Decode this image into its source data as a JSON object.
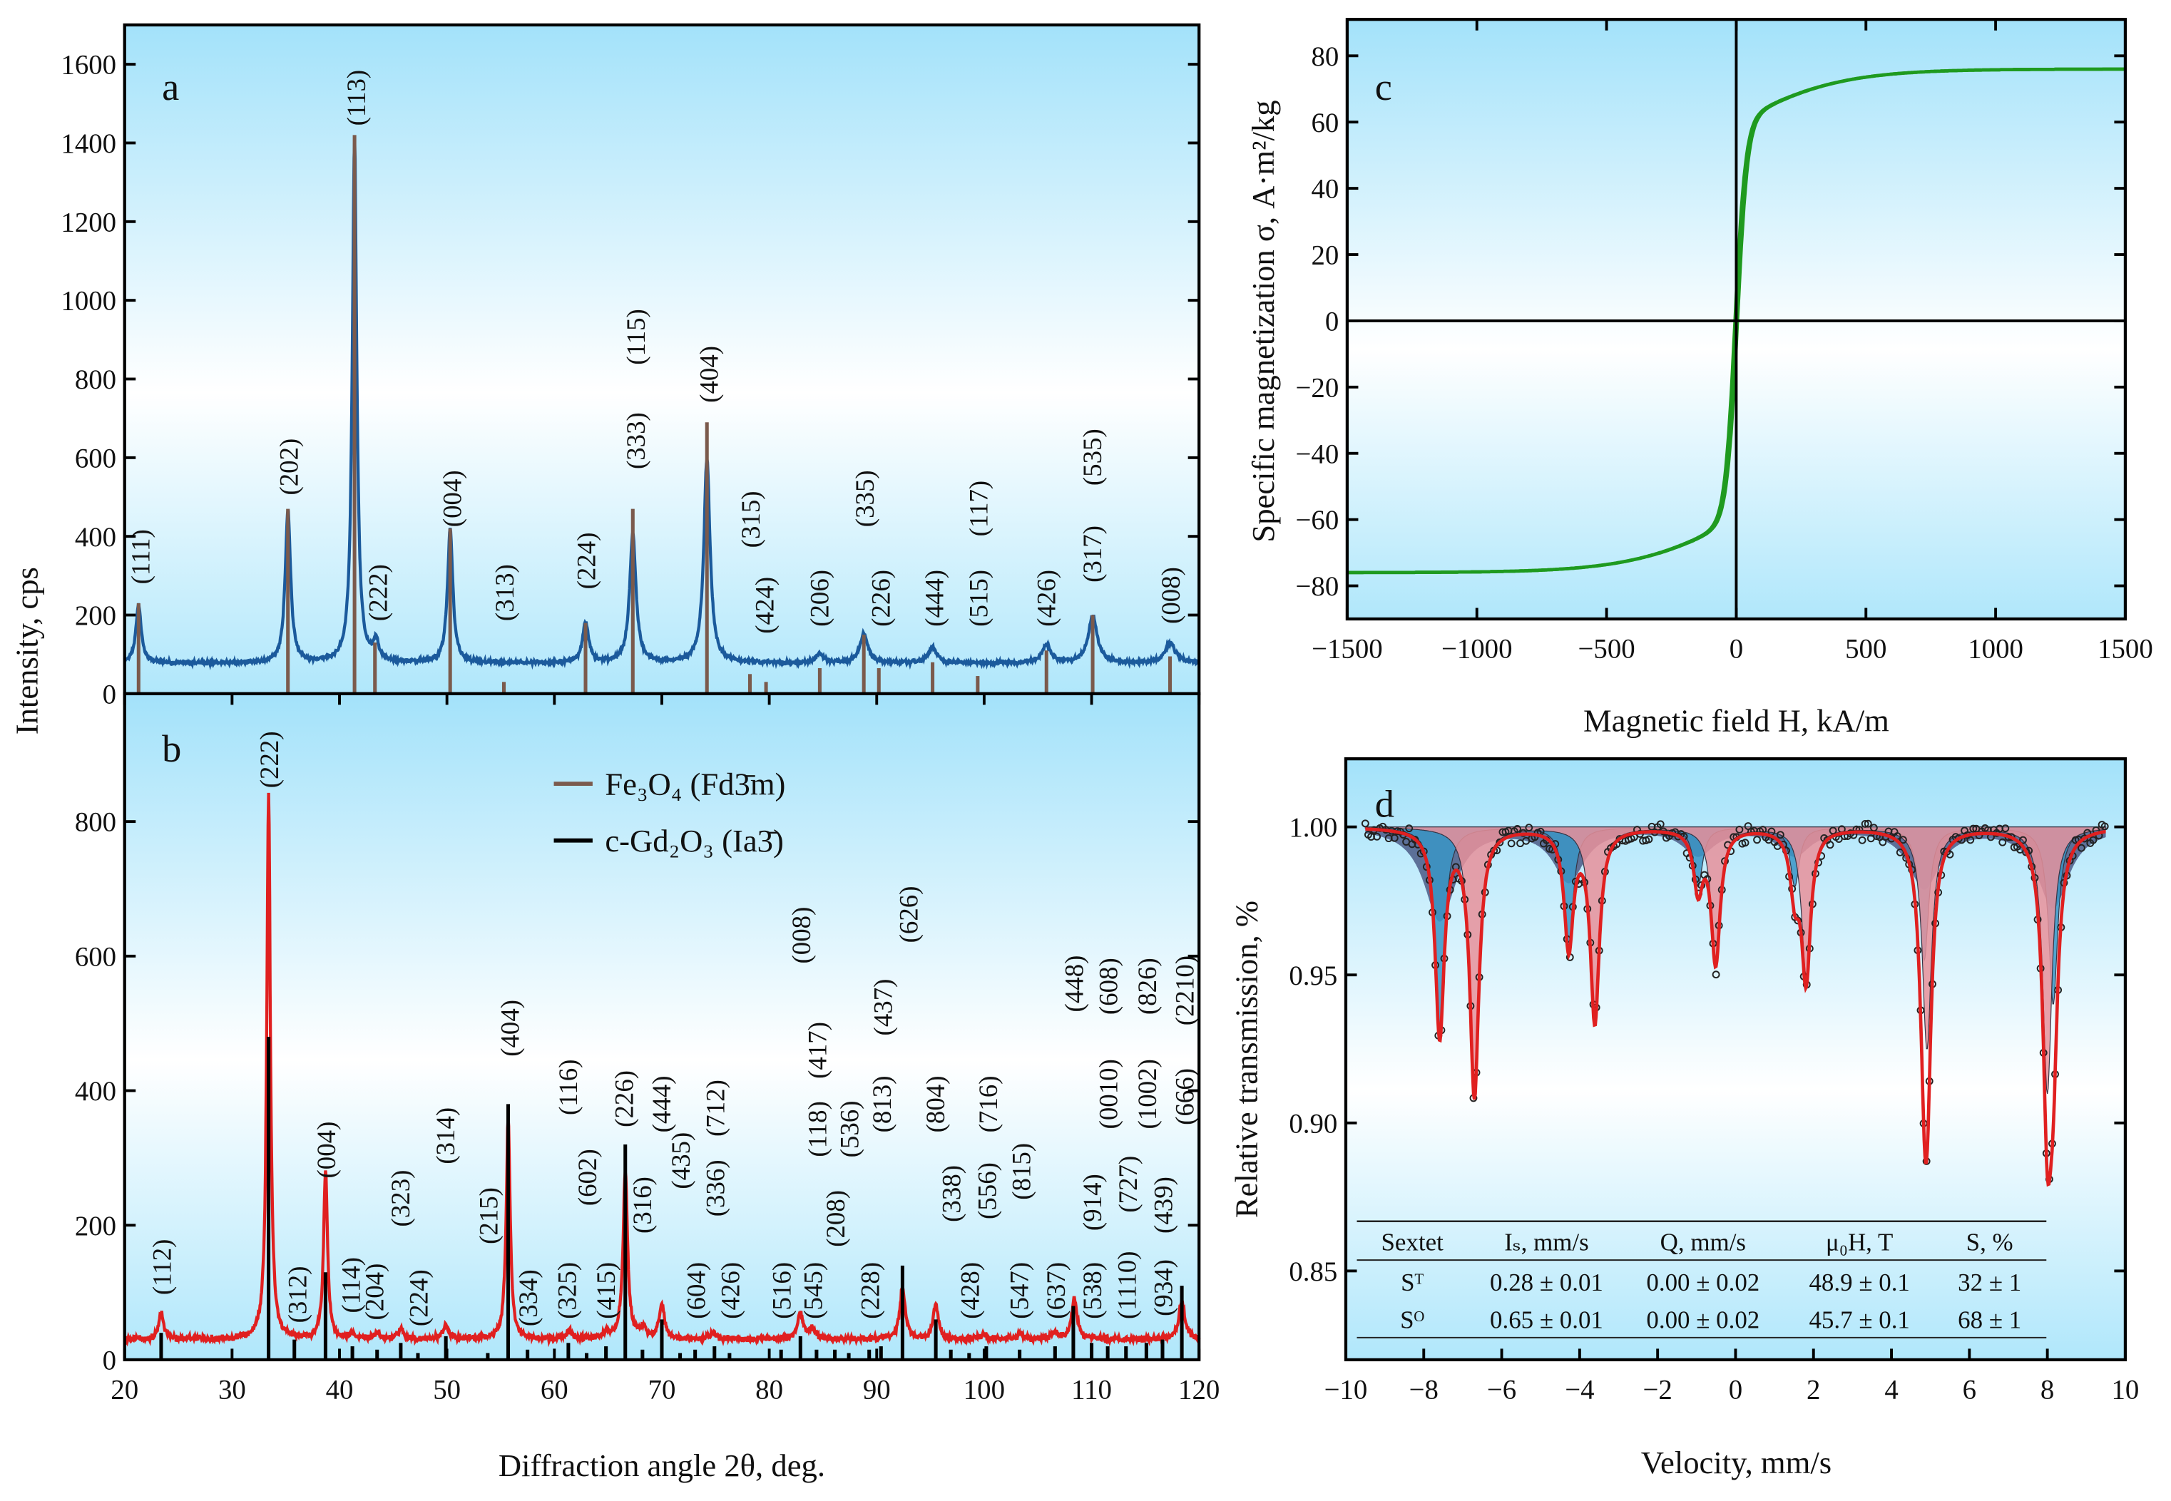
{
  "chart_data": [
    {
      "panel": "a",
      "type": "line",
      "xlabel": "Diffraction angle  2θ, deg.",
      "ylabel": "Intensity, cps",
      "xlim": [
        20,
        120
      ],
      "ylim": [
        0,
        1700
      ],
      "yticks": [
        0,
        200,
        400,
        600,
        800,
        1000,
        1200,
        1400,
        1600
      ],
      "series_color": "#1b5a9c",
      "stick_color": "#7b5a4c",
      "baseline": 75,
      "peaks": [
        [
          21.3,
          150,
          0.3
        ],
        [
          35.2,
          390,
          0.3
        ],
        [
          41.4,
          1330,
          0.25
        ],
        [
          43.4,
          50,
          0.3
        ],
        [
          50.3,
          340,
          0.3
        ],
        [
          62.9,
          100,
          0.35
        ],
        [
          67.3,
          330,
          0.35
        ],
        [
          74.2,
          520,
          0.35
        ],
        [
          84.7,
          25,
          0.4
        ],
        [
          88.8,
          75,
          0.45
        ],
        [
          95.2,
          40,
          0.5
        ],
        [
          105.8,
          45,
          0.5
        ],
        [
          110.1,
          120,
          0.5
        ],
        [
          117.3,
          50,
          0.6
        ]
      ],
      "sticks": [
        [
          21.3,
          230
        ],
        [
          35.2,
          470
        ],
        [
          41.4,
          1420
        ],
        [
          43.3,
          130
        ],
        [
          50.3,
          420
        ],
        [
          55.3,
          30
        ],
        [
          62.9,
          180
        ],
        [
          67.3,
          470
        ],
        [
          74.2,
          690
        ],
        [
          78.2,
          50
        ],
        [
          79.7,
          30
        ],
        [
          84.7,
          65
        ],
        [
          88.8,
          150
        ],
        [
          90.2,
          65
        ],
        [
          95.2,
          80
        ],
        [
          99.4,
          45
        ],
        [
          105.8,
          110
        ],
        [
          110.1,
          200
        ],
        [
          117.3,
          95
        ]
      ],
      "annotations": [
        [
          "(111)",
          21.4,
          348
        ],
        [
          "(202)",
          35.2,
          577
        ],
        [
          "(113)",
          41.5,
          1515
        ],
        [
          "(222)",
          43.5,
          257
        ],
        [
          "(004)",
          50.4,
          496
        ],
        [
          "(313)",
          55.3,
          257
        ],
        [
          "(224)",
          62.9,
          338
        ],
        [
          "(333)",
          67.5,
          643
        ],
        [
          "(115)",
          67.5,
          907
        ],
        [
          "(404)",
          74.3,
          812
        ],
        [
          "(315)",
          78.2,
          443
        ],
        [
          "(424)",
          79.5,
          225
        ],
        [
          "(206)",
          84.6,
          243
        ],
        [
          "(335)",
          88.8,
          496
        ],
        [
          "(226)",
          90.3,
          243
        ],
        [
          "(444)",
          95.3,
          243
        ],
        [
          "(515)",
          99.4,
          243
        ],
        [
          "(117)",
          99.4,
          471
        ],
        [
          "(426)",
          105.7,
          243
        ],
        [
          "(535)",
          110.0,
          601
        ],
        [
          "(317)",
          110.0,
          355
        ],
        [
          "(008)",
          117.3,
          250
        ]
      ]
    },
    {
      "panel": "b",
      "type": "line",
      "xlabel": "Diffraction angle  2θ, deg.",
      "ylabel": "Intensity, cps",
      "xlim": [
        20,
        120
      ],
      "ylim": [
        0,
        990
      ],
      "xticks": [
        20,
        30,
        40,
        50,
        60,
        70,
        80,
        90,
        100,
        110,
        120
      ],
      "yticks": [
        0,
        200,
        400,
        600,
        800
      ],
      "series_color": "#e02020",
      "stick_color": "#000000",
      "baseline": 28,
      "legend": [
        {
          "label": "Fe₃O₄ (Fd3̄m)",
          "color": "#7b5a4c"
        },
        {
          "label": "c-Gd₂O₃ (Ia3̄)",
          "color": "#000000"
        }
      ],
      "peaks": [
        [
          23.4,
          40,
          0.25
        ],
        [
          33.4,
          810,
          0.2
        ],
        [
          38.7,
          250,
          0.22
        ],
        [
          41.2,
          8,
          0.3
        ],
        [
          43.5,
          8,
          0.3
        ],
        [
          45.7,
          15,
          0.3
        ],
        [
          49.9,
          20,
          0.3
        ],
        [
          55.7,
          330,
          0.22
        ],
        [
          61.4,
          12,
          0.3
        ],
        [
          64.9,
          10,
          0.3
        ],
        [
          66.6,
          250,
          0.25
        ],
        [
          68.2,
          15,
          0.3
        ],
        [
          70.0,
          50,
          0.3
        ],
        [
          74.8,
          10,
          0.3
        ],
        [
          82.9,
          40,
          0.3
        ],
        [
          84.0,
          15,
          0.3
        ],
        [
          92.4,
          75,
          0.3
        ],
        [
          95.5,
          50,
          0.3
        ],
        [
          100.0,
          8,
          0.3
        ],
        [
          103.4,
          8,
          0.3
        ],
        [
          106.6,
          10,
          0.3
        ],
        [
          108.4,
          60,
          0.3
        ],
        [
          118.4,
          55,
          0.35
        ]
      ],
      "sticks": [
        [
          23.4,
          40
        ],
        [
          33.4,
          480
        ],
        [
          35.8,
          30
        ],
        [
          38.7,
          130
        ],
        [
          41.2,
          20
        ],
        [
          43.5,
          15
        ],
        [
          45.7,
          25
        ],
        [
          47.3,
          10
        ],
        [
          49.9,
          35
        ],
        [
          53.8,
          10
        ],
        [
          55.7,
          380
        ],
        [
          57.5,
          15
        ],
        [
          61.3,
          25
        ],
        [
          63.0,
          10
        ],
        [
          64.8,
          20
        ],
        [
          66.6,
          320
        ],
        [
          68.2,
          15
        ],
        [
          70.0,
          60
        ],
        [
          71.7,
          10
        ],
        [
          73.1,
          15
        ],
        [
          74.9,
          20
        ],
        [
          76.3,
          10
        ],
        [
          81.1,
          15
        ],
        [
          82.9,
          35
        ],
        [
          84.4,
          15
        ],
        [
          86.1,
          15
        ],
        [
          87.4,
          10
        ],
        [
          89.3,
          15
        ],
        [
          90.4,
          20
        ],
        [
          92.4,
          140
        ],
        [
          95.5,
          60
        ],
        [
          96.9,
          15
        ],
        [
          98.6,
          10
        ],
        [
          100.2,
          20
        ],
        [
          103.3,
          15
        ],
        [
          106.6,
          20
        ],
        [
          108.3,
          80
        ],
        [
          110.0,
          25
        ],
        [
          111.5,
          20
        ],
        [
          113.2,
          20
        ],
        [
          115.1,
          25
        ],
        [
          116.6,
          30
        ],
        [
          118.4,
          110
        ]
      ],
      "annotations": [
        [
          "(112)",
          23.4,
          138
        ],
        [
          "(222)",
          33.4,
          892
        ],
        [
          "(312)",
          36.0,
          97
        ],
        [
          "(004)",
          38.7,
          312
        ],
        [
          "(114)",
          41.0,
          111
        ],
        [
          "(204)",
          43.2,
          101
        ],
        [
          "(323)",
          45.6,
          240
        ],
        [
          "(224)",
          47.3,
          92
        ],
        [
          "(314)",
          49.8,
          333
        ],
        [
          "(215)",
          53.8,
          214
        ],
        [
          "(404)",
          55.8,
          493
        ],
        [
          "(334)",
          57.5,
          92
        ],
        [
          "(116)",
          61.2,
          405
        ],
        [
          "(325)",
          61.1,
          103
        ],
        [
          "(602)",
          63.0,
          271
        ],
        [
          "(415)",
          64.7,
          103
        ],
        [
          "(226)",
          66.4,
          388
        ],
        [
          "(316)",
          68.1,
          230
        ],
        [
          "(444)",
          69.9,
          380
        ],
        [
          "(435)",
          71.7,
          296
        ],
        [
          "(712)",
          74.9,
          374
        ],
        [
          "(336)",
          74.9,
          255
        ],
        [
          "(604)",
          73.1,
          103
        ],
        [
          "(426)",
          76.3,
          103
        ],
        [
          "(516)",
          81.1,
          103
        ],
        [
          "(545)",
          84.0,
          103
        ],
        [
          "(208)",
          86.1,
          210
        ],
        [
          "(118)",
          84.4,
          343
        ],
        [
          "(417)",
          84.4,
          460
        ],
        [
          "(008)",
          82.9,
          631
        ],
        [
          "(536)",
          87.4,
          343
        ],
        [
          "(813)",
          90.4,
          380
        ],
        [
          "(437)",
          90.5,
          524
        ],
        [
          "(626)",
          92.9,
          662
        ],
        [
          "(228)",
          89.3,
          103
        ],
        [
          "(804)",
          95.4,
          380
        ],
        [
          "(338)",
          96.9,
          247
        ],
        [
          "(556)",
          100.2,
          251
        ],
        [
          "(716)",
          100.3,
          380
        ],
        [
          "(815)",
          103.4,
          280
        ],
        [
          "(428)",
          98.6,
          103
        ],
        [
          "(547)",
          103.2,
          103
        ],
        [
          "(637)",
          106.6,
          103
        ],
        [
          "(448)",
          108.3,
          559
        ],
        [
          "(538)",
          110.0,
          103
        ],
        [
          "(914)",
          110.0,
          234
        ],
        [
          "(0010)",
          111.5,
          395
        ],
        [
          "(608)",
          111.5,
          555
        ],
        [
          "(1110)",
          113.2,
          111
        ],
        [
          "(727)",
          113.3,
          261
        ],
        [
          "(1002)",
          115.1,
          395
        ],
        [
          "(826)",
          115.1,
          555
        ],
        [
          "(934)",
          116.6,
          107
        ],
        [
          "(439)",
          116.6,
          230
        ],
        [
          "(666)",
          118.6,
          391
        ],
        [
          "(2210)",
          118.6,
          549
        ]
      ]
    },
    {
      "panel": "c",
      "type": "line",
      "xlabel": "Magnetic field H, kA/m",
      "ylabel": "Specific magnetization σ, A·m²/kg",
      "xlim": [
        -1500,
        1500
      ],
      "ylim": [
        -90,
        91
      ],
      "xticks": [
        -1500,
        -1000,
        -500,
        0,
        500,
        1000,
        1500
      ],
      "yticks": [
        -80,
        -60,
        -40,
        -20,
        0,
        20,
        40,
        60,
        80
      ],
      "series_color": "#1f9a1f",
      "saturation_magnetization": 76,
      "coercivity_approx": 5
    },
    {
      "panel": "d",
      "type": "scatter",
      "xlabel": "Velocity, mm/s",
      "ylabel": "Relative transmission, %",
      "xlim": [
        -10,
        10
      ],
      "ylim": [
        0.82,
        1.023
      ],
      "xticks": [
        -10,
        -8,
        -6,
        -4,
        -2,
        0,
        2,
        4,
        6,
        8,
        10
      ],
      "yticks": [
        "0.85",
        "0.90",
        "0.95",
        "1.00"
      ],
      "fit_color": "#e02020",
      "sextets": [
        {
          "name": "ST",
          "color": "#3a95c6",
          "lines": [
            -7.59,
            -4.28,
            -0.96,
            1.52,
            4.84,
            8.15
          ],
          "depths": [
            0.07,
            0.04,
            0.02,
            0.02,
            0.045,
            0.06
          ]
        },
        {
          "name": "SO",
          "color": "#e8909a",
          "lines": [
            -6.7,
            -3.61,
            -0.51,
            1.81,
            4.91,
            8.0
          ],
          "depths": [
            0.09,
            0.065,
            0.045,
            0.05,
            0.075,
            0.09
          ]
        }
      ],
      "table": {
        "headers": [
          "Sextet",
          "Iₛ, mm/s",
          "Q, mm/s",
          "μ₀H, T",
          "S, %"
        ],
        "rows": [
          [
            "Sᵀ",
            "0.28 ± 0.01",
            "0.00 ± 0.02",
            "48.9 ± 0.1",
            "32 ± 1"
          ],
          [
            "Sᴼ",
            "0.65 ± 0.01",
            "0.00 ± 0.02",
            "45.7 ± 0.1",
            "68 ± 1"
          ]
        ]
      }
    }
  ],
  "panel_letters": [
    "a",
    "b",
    "c",
    "d"
  ]
}
